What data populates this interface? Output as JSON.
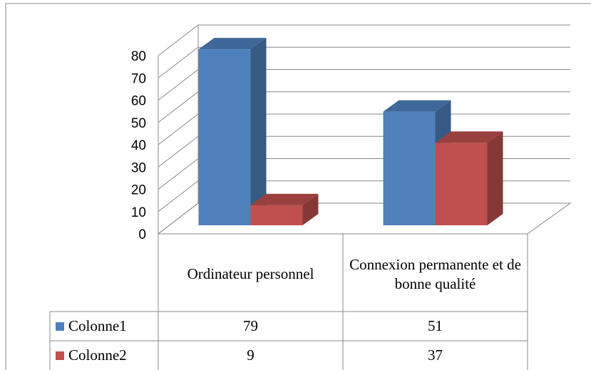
{
  "chart_data": {
    "type": "bar3d",
    "categories": [
      "Ordinateur personnel",
      "Connexion permanente et de bonne qualité"
    ],
    "series": [
      {
        "name": "Colonne1",
        "color": "#4f81bd",
        "values": [
          79,
          51
        ]
      },
      {
        "name": "Colonne2",
        "color": "#c0504d",
        "values": [
          9,
          37
        ]
      }
    ],
    "ylim": [
      0,
      80
    ],
    "yticks": [
      0,
      10,
      20,
      30,
      40,
      50,
      60,
      70,
      80
    ],
    "grid": true,
    "data_table": true
  }
}
